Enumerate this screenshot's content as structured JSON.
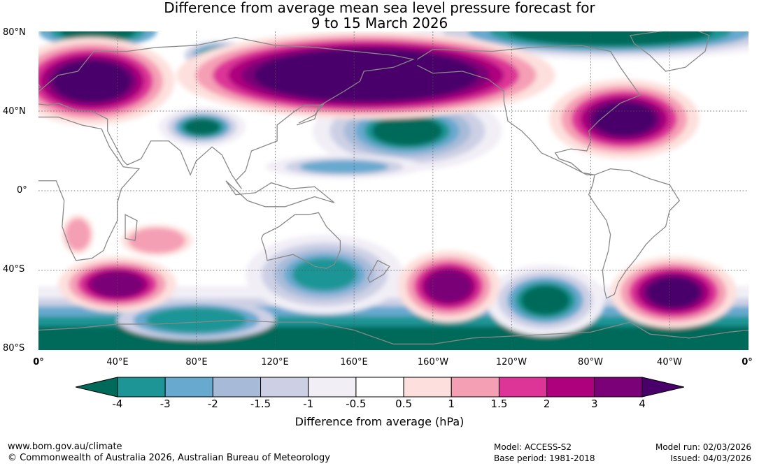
{
  "title": {
    "line1": "Difference from average mean sea level pressure forecast for",
    "line2": "9 to 15 March 2026"
  },
  "chart_data": {
    "type": "heatmap",
    "projection": "equirectangular, 0° to 360° longitude, 80°S to 80°N latitude",
    "lat_ticks": [
      "80°N",
      "40°N",
      "0°",
      "40°S",
      "80°S"
    ],
    "lon_ticks": [
      "0°",
      "40°E",
      "80°E",
      "120°E",
      "160°E",
      "160°W",
      "120°W",
      "80°W",
      "40°W",
      "0°"
    ],
    "colorbar": {
      "ticks": [
        "-4",
        "-3",
        "-2",
        "-1.5",
        "-1",
        "-0.5",
        "0.5",
        "1",
        "1.5",
        "2",
        "3",
        "4"
      ],
      "levels": [
        -4,
        -3,
        -2,
        -1.5,
        -1,
        -0.5,
        0.5,
        1,
        1.5,
        2,
        3,
        4
      ],
      "colors": [
        "#006a5a",
        "#1d9596",
        "#67a9cf",
        "#a7bbd9",
        "#cdd0e5",
        "#f1eef6",
        "#ffffff",
        "#fde0dd",
        "#f59fb5",
        "#dd3497",
        "#ae017e",
        "#7a0177",
        "#49006a"
      ],
      "label": "Difference from average (hPa)"
    },
    "anomalies": [
      {
        "sign": "positive",
        "region": "Europe / North Atlantic",
        "center_lon": 25,
        "center_lat": 58,
        "peak": "> 4"
      },
      {
        "sign": "positive",
        "region": "Siberia / North Pacific",
        "center_lon": 165,
        "center_lat": 60,
        "peak": "> 4"
      },
      {
        "sign": "positive",
        "region": "Eastern North America / North Atlantic",
        "center_lon": 298,
        "center_lat": 37,
        "peak": "> 4"
      },
      {
        "sign": "positive",
        "region": "Southern Indian Ocean",
        "center_lon": 40,
        "center_lat": -47,
        "peak": "3 to 4"
      },
      {
        "sign": "positive",
        "region": "South Pacific",
        "center_lon": 210,
        "center_lat": -50,
        "peak": "3 to 4"
      },
      {
        "sign": "positive",
        "region": "South Atlantic",
        "center_lon": 320,
        "center_lat": -52,
        "peak": "> 4"
      },
      {
        "sign": "negative",
        "region": "Arctic",
        "center_lon": 270,
        "center_lat": 76,
        "peak": "< -4"
      },
      {
        "sign": "negative",
        "region": "Antarctica / Southern Ocean",
        "center_lon": 90,
        "center_lat": -75,
        "peak": "< -4"
      },
      {
        "sign": "negative",
        "region": "North Pacific (subtropical)",
        "center_lon": 187,
        "center_lat": 30,
        "peak": "< -4"
      },
      {
        "sign": "negative",
        "region": "Southeast Pacific",
        "center_lon": 257,
        "center_lat": -56,
        "peak": "< -4"
      },
      {
        "sign": "negative",
        "region": "Tasman Sea / Australia",
        "center_lon": 160,
        "center_lat": -38,
        "peak": "-3 to -4"
      },
      {
        "sign": "negative",
        "region": "Central Asia",
        "center_lon": 85,
        "center_lat": 33,
        "peak": "-3 to -4"
      },
      {
        "sign": "negative",
        "region": "Arctic Russia",
        "center_lon": 90,
        "center_lat": 70,
        "peak": "-3 to -4"
      }
    ]
  },
  "footer": {
    "website": "www.bom.gov.au/climate",
    "copyright": "© Commonwealth of Australia 2026, Australian Bureau of Meteorology",
    "model": "Model: ACCESS-S2",
    "base_period": "Base period: 1981-2018",
    "model_run": "Model run: 02/03/2026",
    "issued": "Issued: 04/03/2026"
  }
}
